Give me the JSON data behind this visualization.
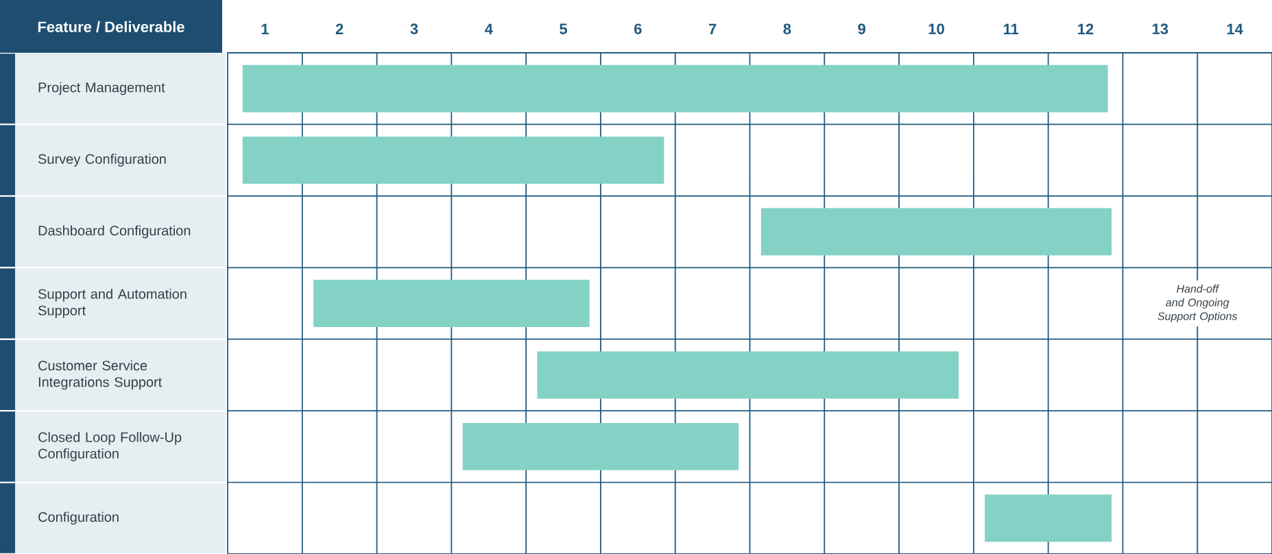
{
  "chart_data": {
    "type": "bar",
    "orientation": "horizontal",
    "ylabel": "Feature / Deliverable",
    "categories": [
      "Project Management",
      "Survey Configuration",
      "Dashboard Configuration",
      "Support and Automation Support",
      "Customer Service Integrations Support",
      "Closed Loop Follow-Up Configuration",
      "Configuration"
    ],
    "base": [
      0.7,
      0.7,
      7.65,
      1.65,
      4.65,
      3.65,
      10.65
    ],
    "values": [
      11.6,
      5.65,
      4.7,
      3.7,
      5.65,
      3.7,
      1.7
    ],
    "color": "#84d2c5",
    "xlim": [
      0.5,
      14.5
    ],
    "xticks": [
      1,
      2,
      3,
      4,
      5,
      6,
      7,
      8,
      9,
      10,
      11,
      12,
      13,
      14
    ],
    "grid": true,
    "annotations": [
      "Hand-off and Ongoing Support Options"
    ]
  }
}
